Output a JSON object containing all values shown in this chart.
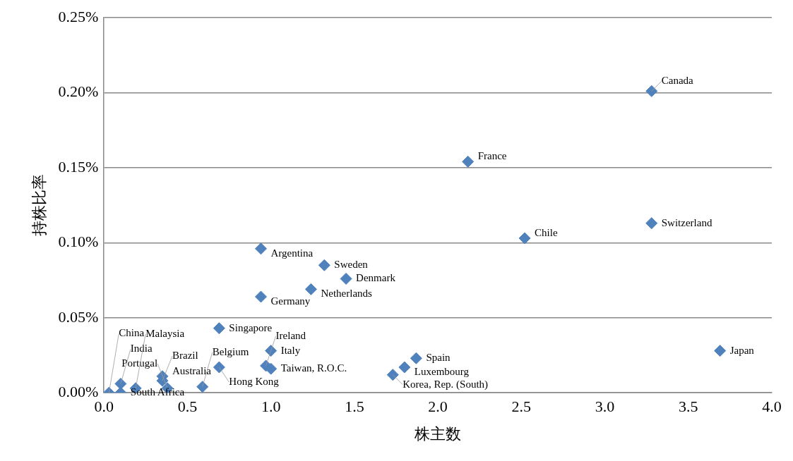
{
  "chart_data": {
    "type": "scatter",
    "xlabel": "株主数",
    "ylabel": "持株比率",
    "xlim": [
      0,
      4
    ],
    "xticks": [
      {
        "value": 0,
        "label": "0.0"
      },
      {
        "value": 0.5,
        "label": "0.5"
      },
      {
        "value": 1,
        "label": "1.0"
      },
      {
        "value": 1.5,
        "label": "1.5"
      },
      {
        "value": 2,
        "label": "2.0"
      },
      {
        "value": 2.5,
        "label": "2.5"
      },
      {
        "value": 3,
        "label": "3.0"
      },
      {
        "value": 3.5,
        "label": "3.5"
      },
      {
        "value": 4,
        "label": "4.0"
      }
    ],
    "ylim": [
      0,
      0.25
    ],
    "yticks": [
      {
        "value": 0,
        "label": "0.00%"
      },
      {
        "value": 0.05,
        "label": "0.05%"
      },
      {
        "value": 0.1,
        "label": "0.10%"
      },
      {
        "value": 0.15,
        "label": "0.15%"
      },
      {
        "value": 0.2,
        "label": "0.20%"
      },
      {
        "value": 0.25,
        "label": "0.25%"
      }
    ],
    "grid": "y",
    "legend": false,
    "marker": "diamond",
    "series": [
      {
        "color": "#4f81bd",
        "x": [
          3.28,
          2.18,
          3.28,
          2.52,
          3.69,
          0.94,
          1.32,
          1.45,
          1.24,
          0.94,
          0.69,
          1.0,
          1.87,
          1.8,
          1.73,
          0.69,
          0.97,
          1.0,
          0.35,
          0.35,
          0.59,
          0.38,
          0.1,
          0.03,
          0.1,
          0.19
        ],
        "values": [
          0.201,
          0.154,
          0.113,
          0.103,
          0.028,
          0.096,
          0.085,
          0.076,
          0.069,
          0.064,
          0.043,
          0.028,
          0.023,
          0.017,
          0.012,
          0.017,
          0.018,
          0.016,
          0.011,
          0.008,
          0.004,
          0.003,
          0.006,
          0.0,
          0.0,
          0.003
        ]
      }
    ],
    "annotations": [
      {
        "text": "Canada",
        "x": 3.28,
        "y": 0.201
      },
      {
        "text": "France",
        "x": 2.18,
        "y": 0.154
      },
      {
        "text": "Switzerland",
        "x": 3.28,
        "y": 0.113
      },
      {
        "text": "Chile",
        "x": 2.52,
        "y": 0.103
      },
      {
        "text": "Japan",
        "x": 3.69,
        "y": 0.028
      },
      {
        "text": "Argentina",
        "x": 0.94,
        "y": 0.096
      },
      {
        "text": "Sweden",
        "x": 1.32,
        "y": 0.085
      },
      {
        "text": "Denmark",
        "x": 1.45,
        "y": 0.076
      },
      {
        "text": "Netherlands",
        "x": 1.24,
        "y": 0.069
      },
      {
        "text": "Germany",
        "x": 0.94,
        "y": 0.064
      },
      {
        "text": "Singapore",
        "x": 0.69,
        "y": 0.043
      },
      {
        "text": "Italy",
        "x": 1.0,
        "y": 0.028
      },
      {
        "text": "Spain",
        "x": 1.87,
        "y": 0.023
      },
      {
        "text": "Luxembourg",
        "x": 1.8,
        "y": 0.017
      },
      {
        "text": "Korea, Rep. (South)",
        "x": 1.73,
        "y": 0.012
      },
      {
        "text": "Hong Kong",
        "x": 0.69,
        "y": 0.017
      },
      {
        "text": "Ireland",
        "x": 0.97,
        "y": 0.018
      },
      {
        "text": "Taiwan, R.O.C.",
        "x": 1.0,
        "y": 0.016
      },
      {
        "text": "Australia",
        "x": 0.35,
        "y": 0.011
      },
      {
        "text": "Brazil",
        "x": 0.35,
        "y": 0.008
      },
      {
        "text": "Belgium",
        "x": 0.59,
        "y": 0.004
      },
      {
        "text": "Portugal",
        "x": 0.38,
        "y": 0.003
      },
      {
        "text": "India",
        "x": 0.1,
        "y": 0.006
      },
      {
        "text": "China",
        "x": 0.03,
        "y": 0.0
      },
      {
        "text": "South Africa",
        "x": 0.1,
        "y": 0.0
      },
      {
        "text": "Malaysia",
        "x": 0.19,
        "y": 0.003
      }
    ]
  }
}
